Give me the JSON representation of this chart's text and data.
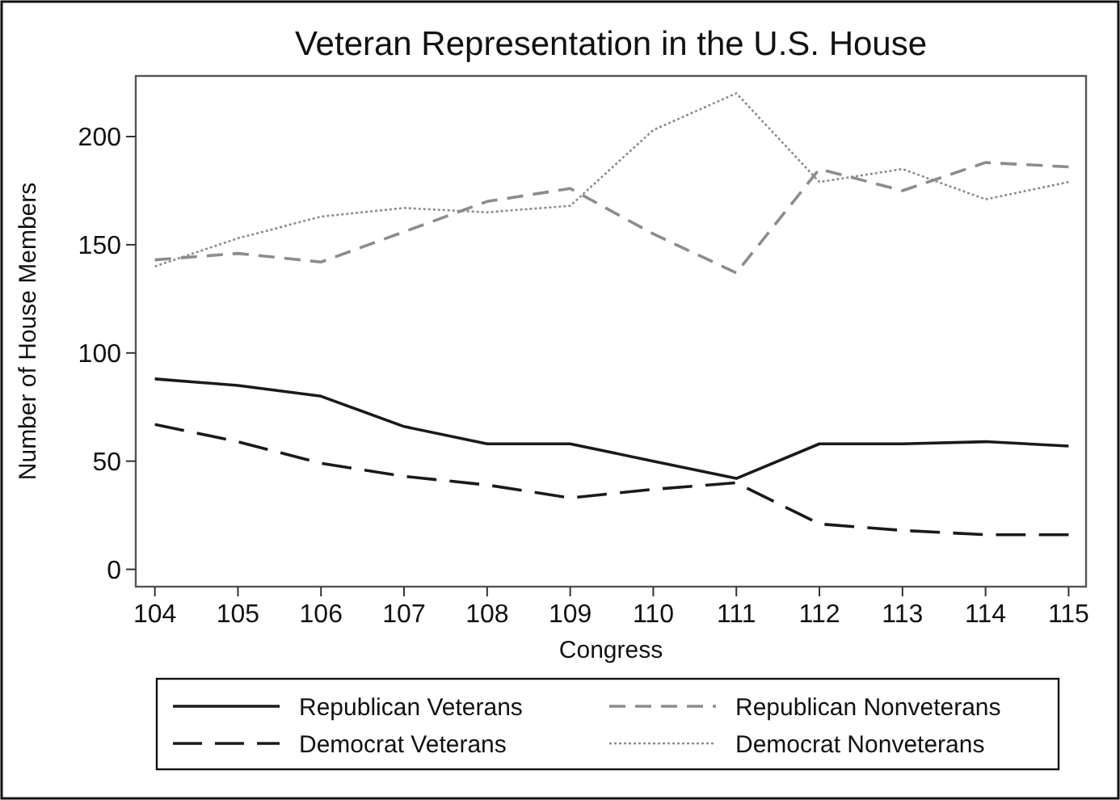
{
  "chart_data": {
    "type": "line",
    "title": "Veteran Representation in the U.S. House",
    "xlabel": "Congress",
    "ylabel": "Number of House Members",
    "x": [
      104,
      105,
      106,
      107,
      108,
      109,
      110,
      111,
      112,
      113,
      114,
      115
    ],
    "xlim": [
      103.77,
      115.21
    ],
    "xticks": [
      104,
      105,
      106,
      107,
      108,
      109,
      110,
      111,
      112,
      113,
      114,
      115
    ],
    "ylim": [
      -8,
      228
    ],
    "yticks": [
      0,
      50,
      100,
      150,
      200
    ],
    "grid": false,
    "legend": "bottom",
    "marker": "none",
    "series": [
      {
        "name": "Republican Veterans",
        "color": "#1a1a1a",
        "line_style": "solid",
        "values": [
          88,
          85,
          80,
          66,
          58,
          58,
          50,
          42,
          58,
          58,
          59,
          57
        ]
      },
      {
        "name": "Republican Nonveterans",
        "color": "#8c8c8c",
        "line_style": "dashed",
        "values": [
          143,
          146,
          142,
          156,
          170,
          176,
          155,
          137,
          185,
          175,
          188,
          186
        ]
      },
      {
        "name": "Democrat Veterans",
        "color": "#1a1a1a",
        "line_style": "longdash",
        "values": [
          67,
          59,
          49,
          43,
          39,
          33,
          37,
          40,
          21,
          18,
          16,
          16
        ]
      },
      {
        "name": "Democrat Nonveterans",
        "color": "#8c8c8c",
        "line_style": "dotted",
        "values": [
          140,
          153,
          163,
          167,
          165,
          168,
          203,
          220,
          179,
          185,
          171,
          179
        ]
      }
    ]
  }
}
